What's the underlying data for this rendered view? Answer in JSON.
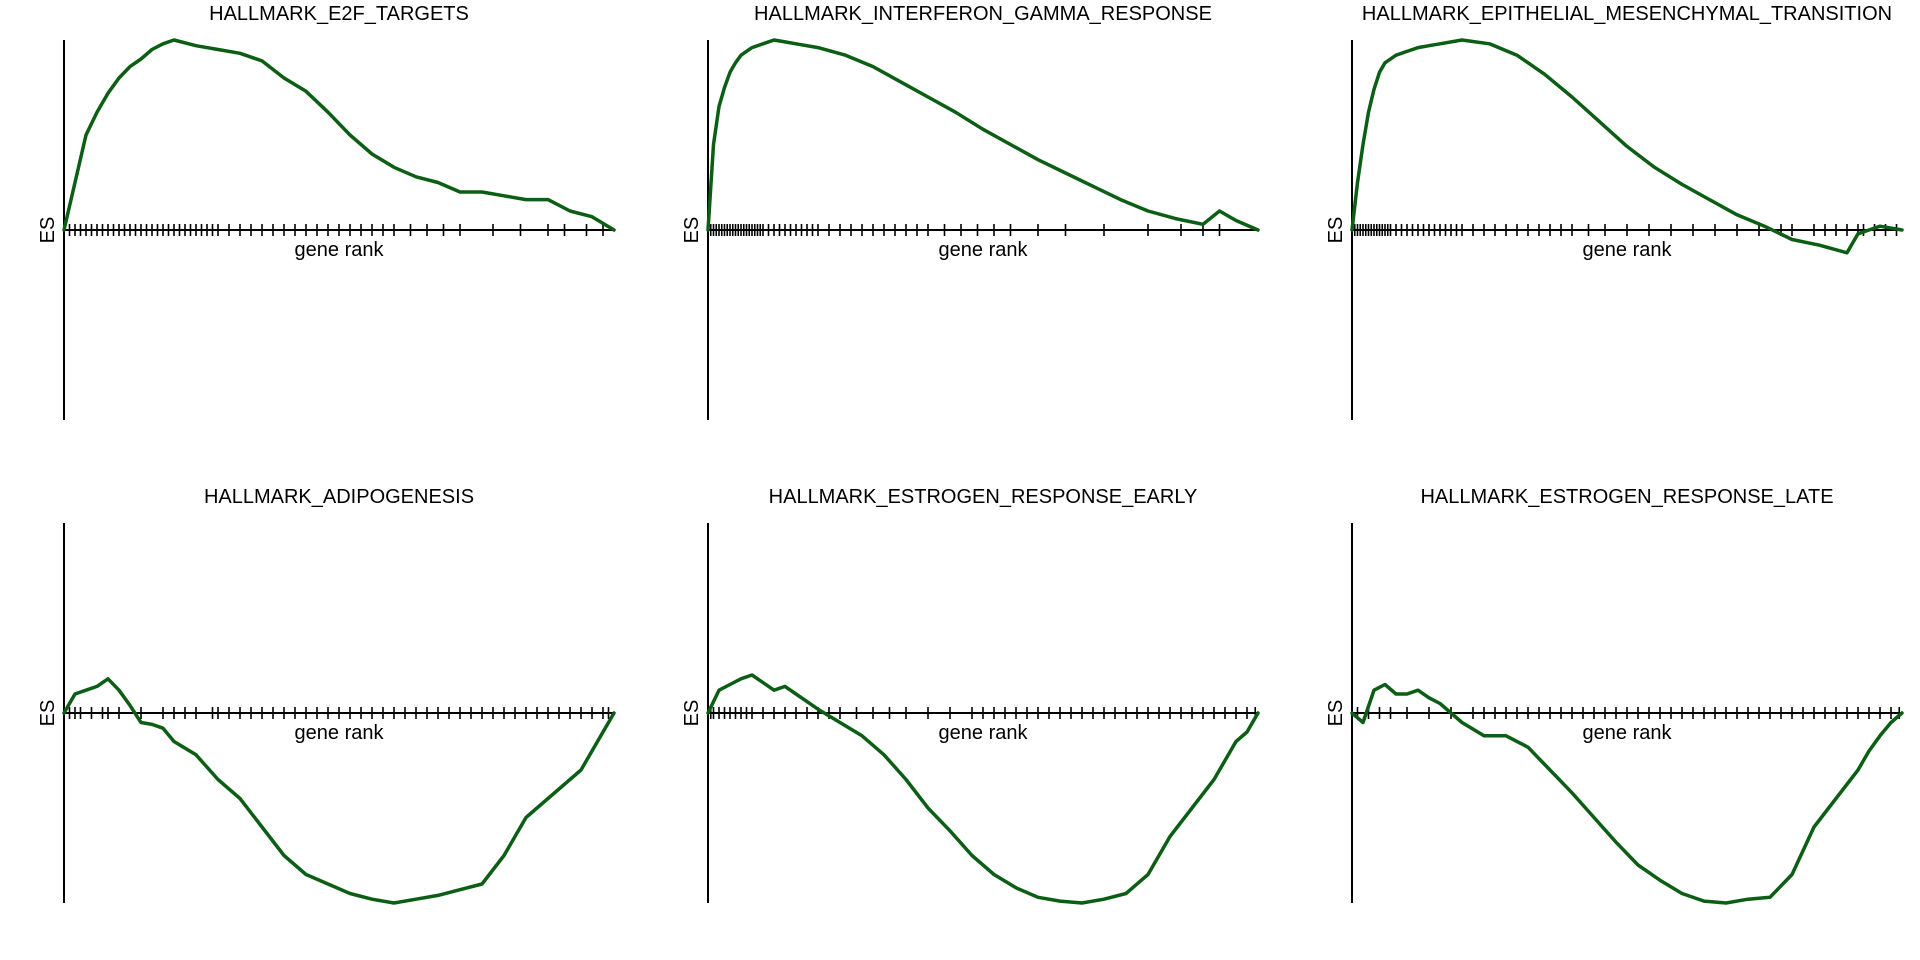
{
  "colors": {
    "curve": "#0b5e14",
    "axis": "#000000"
  },
  "chart_data": [
    {
      "type": "line",
      "title": "HALLMARK_E2F_TARGETS",
      "xlabel": "gene rank",
      "ylabel": "ES",
      "xlim": [
        0,
        1
      ],
      "ylim": [
        -1,
        1
      ],
      "series": [
        {
          "x": [
            0,
            0.02,
            0.04,
            0.06,
            0.08,
            0.1,
            0.12,
            0.14,
            0.16,
            0.18,
            0.2,
            0.24,
            0.28,
            0.32,
            0.36,
            0.4,
            0.44,
            0.48,
            0.52,
            0.56,
            0.6,
            0.64,
            0.68,
            0.72,
            0.76,
            0.8,
            0.84,
            0.88,
            0.92,
            0.96,
            1.0
          ],
          "y": [
            0,
            0.25,
            0.5,
            0.62,
            0.72,
            0.8,
            0.86,
            0.9,
            0.95,
            0.98,
            1.0,
            0.97,
            0.95,
            0.93,
            0.89,
            0.8,
            0.73,
            0.62,
            0.5,
            0.4,
            0.33,
            0.28,
            0.25,
            0.2,
            0.2,
            0.18,
            0.16,
            0.16,
            0.1,
            0.07,
            0.0
          ]
        }
      ],
      "hits": [
        0.01,
        0.02,
        0.03,
        0.04,
        0.05,
        0.06,
        0.07,
        0.08,
        0.09,
        0.1,
        0.11,
        0.12,
        0.13,
        0.14,
        0.15,
        0.16,
        0.17,
        0.18,
        0.19,
        0.2,
        0.21,
        0.22,
        0.23,
        0.24,
        0.25,
        0.26,
        0.27,
        0.28,
        0.3,
        0.32,
        0.34,
        0.36,
        0.38,
        0.4,
        0.42,
        0.44,
        0.46,
        0.48,
        0.5,
        0.52,
        0.54,
        0.56,
        0.58,
        0.6,
        0.63,
        0.66,
        0.69,
        0.72,
        0.78,
        0.83,
        0.88,
        0.91,
        0.95,
        0.98
      ]
    },
    {
      "type": "line",
      "title": "HALLMARK_INTERFERON_GAMMA_RESPONSE",
      "xlabel": "gene rank",
      "ylabel": "ES",
      "xlim": [
        0,
        1
      ],
      "ylim": [
        -1,
        1
      ],
      "series": [
        {
          "x": [
            0,
            0.01,
            0.02,
            0.03,
            0.04,
            0.05,
            0.06,
            0.08,
            0.1,
            0.12,
            0.14,
            0.16,
            0.2,
            0.25,
            0.3,
            0.35,
            0.4,
            0.45,
            0.5,
            0.55,
            0.6,
            0.65,
            0.7,
            0.75,
            0.8,
            0.85,
            0.9,
            0.93,
            0.96,
            1.0
          ],
          "y": [
            0,
            0.45,
            0.65,
            0.75,
            0.83,
            0.88,
            0.92,
            0.96,
            0.98,
            1.0,
            0.99,
            0.98,
            0.96,
            0.92,
            0.86,
            0.78,
            0.7,
            0.62,
            0.53,
            0.45,
            0.37,
            0.3,
            0.23,
            0.16,
            0.1,
            0.06,
            0.03,
            0.1,
            0.05,
            0.0
          ]
        }
      ],
      "hits": [
        0.005,
        0.01,
        0.015,
        0.02,
        0.025,
        0.03,
        0.035,
        0.04,
        0.045,
        0.05,
        0.055,
        0.06,
        0.065,
        0.07,
        0.075,
        0.08,
        0.085,
        0.09,
        0.095,
        0.1,
        0.11,
        0.12,
        0.13,
        0.14,
        0.15,
        0.16,
        0.17,
        0.18,
        0.19,
        0.2,
        0.22,
        0.24,
        0.26,
        0.28,
        0.3,
        0.32,
        0.34,
        0.36,
        0.38,
        0.4,
        0.43,
        0.46,
        0.49,
        0.52,
        0.55,
        0.6,
        0.65,
        0.72,
        0.8,
        0.86,
        0.9,
        0.93
      ]
    },
    {
      "type": "line",
      "title": "HALLMARK_EPITHELIAL_MESENCHYMAL_TRANSITION",
      "xlabel": "gene rank",
      "ylabel": "ES",
      "xlim": [
        0,
        1
      ],
      "ylim": [
        -1,
        1
      ],
      "series": [
        {
          "x": [
            0,
            0.01,
            0.02,
            0.03,
            0.04,
            0.05,
            0.06,
            0.08,
            0.1,
            0.12,
            0.14,
            0.16,
            0.2,
            0.25,
            0.3,
            0.35,
            0.4,
            0.45,
            0.5,
            0.55,
            0.6,
            0.65,
            0.7,
            0.75,
            0.8,
            0.85,
            0.9,
            0.92,
            0.94,
            0.96,
            1.0
          ],
          "y": [
            0,
            0.25,
            0.45,
            0.62,
            0.74,
            0.83,
            0.88,
            0.92,
            0.94,
            0.96,
            0.97,
            0.98,
            1.0,
            0.98,
            0.92,
            0.82,
            0.7,
            0.57,
            0.44,
            0.33,
            0.24,
            0.16,
            0.08,
            0.02,
            -0.05,
            -0.08,
            -0.12,
            -0.02,
            0.0,
            0.02,
            0.0
          ]
        }
      ],
      "hits": [
        0.005,
        0.01,
        0.015,
        0.02,
        0.025,
        0.03,
        0.035,
        0.04,
        0.045,
        0.05,
        0.055,
        0.06,
        0.065,
        0.07,
        0.08,
        0.09,
        0.1,
        0.11,
        0.12,
        0.13,
        0.14,
        0.15,
        0.16,
        0.17,
        0.18,
        0.19,
        0.2,
        0.22,
        0.24,
        0.26,
        0.28,
        0.3,
        0.32,
        0.34,
        0.36,
        0.38,
        0.4,
        0.43,
        0.46,
        0.5,
        0.54,
        0.58,
        0.62,
        0.66,
        0.7,
        0.74,
        0.78,
        0.8,
        0.84,
        0.86,
        0.88,
        0.9,
        0.92,
        0.93,
        0.95,
        0.97,
        0.99
      ]
    },
    {
      "type": "line",
      "title": "HALLMARK_ADIPOGENESIS",
      "xlabel": "gene rank",
      "ylabel": "ES",
      "xlim": [
        0,
        1
      ],
      "ylim": [
        -1,
        1
      ],
      "series": [
        {
          "x": [
            0,
            0.02,
            0.04,
            0.06,
            0.08,
            0.1,
            0.12,
            0.14,
            0.16,
            0.18,
            0.2,
            0.24,
            0.28,
            0.32,
            0.36,
            0.4,
            0.44,
            0.48,
            0.52,
            0.56,
            0.6,
            0.64,
            0.68,
            0.72,
            0.76,
            0.8,
            0.84,
            0.88,
            0.92,
            0.94,
            0.96,
            0.98,
            1.0
          ],
          "y": [
            0,
            0.1,
            0.12,
            0.14,
            0.18,
            0.12,
            0.04,
            -0.05,
            -0.06,
            -0.08,
            -0.15,
            -0.22,
            -0.35,
            -0.45,
            -0.6,
            -0.75,
            -0.85,
            -0.9,
            -0.95,
            -0.98,
            -1.0,
            -0.98,
            -0.96,
            -0.93,
            -0.9,
            -0.75,
            -0.55,
            -0.45,
            -0.35,
            -0.3,
            -0.2,
            -0.1,
            0.0
          ]
        }
      ],
      "hits": [
        0.01,
        0.02,
        0.03,
        0.05,
        0.07,
        0.08,
        0.1,
        0.14,
        0.18,
        0.2,
        0.22,
        0.24,
        0.27,
        0.28,
        0.3,
        0.32,
        0.34,
        0.36,
        0.38,
        0.4,
        0.42,
        0.44,
        0.46,
        0.48,
        0.5,
        0.52,
        0.54,
        0.56,
        0.58,
        0.6,
        0.62,
        0.64,
        0.66,
        0.68,
        0.7,
        0.72,
        0.74,
        0.76,
        0.78,
        0.8,
        0.82,
        0.84,
        0.86,
        0.88,
        0.9,
        0.92,
        0.94,
        0.96,
        0.98,
        0.99
      ]
    },
    {
      "type": "line",
      "title": "HALLMARK_ESTROGEN_RESPONSE_EARLY",
      "xlabel": "gene rank",
      "ylabel": "ES",
      "xlim": [
        0,
        1
      ],
      "ylim": [
        -1,
        1
      ],
      "series": [
        {
          "x": [
            0,
            0.02,
            0.04,
            0.06,
            0.08,
            0.1,
            0.12,
            0.14,
            0.16,
            0.18,
            0.2,
            0.24,
            0.28,
            0.32,
            0.36,
            0.4,
            0.44,
            0.48,
            0.52,
            0.56,
            0.6,
            0.64,
            0.68,
            0.72,
            0.76,
            0.8,
            0.84,
            0.88,
            0.92,
            0.94,
            0.96,
            0.98,
            1.0
          ],
          "y": [
            0,
            0.12,
            0.15,
            0.18,
            0.2,
            0.16,
            0.12,
            0.14,
            0.1,
            0.06,
            0.02,
            -0.05,
            -0.12,
            -0.22,
            -0.35,
            -0.5,
            -0.62,
            -0.75,
            -0.85,
            -0.92,
            -0.97,
            -0.99,
            -1.0,
            -0.98,
            -0.95,
            -0.85,
            -0.65,
            -0.5,
            -0.35,
            -0.25,
            -0.15,
            -0.1,
            0.0
          ]
        }
      ],
      "hits": [
        0.005,
        0.01,
        0.02,
        0.03,
        0.04,
        0.05,
        0.06,
        0.07,
        0.08,
        0.1,
        0.12,
        0.14,
        0.16,
        0.18,
        0.2,
        0.22,
        0.24,
        0.27,
        0.3,
        0.33,
        0.36,
        0.4,
        0.44,
        0.48,
        0.5,
        0.52,
        0.54,
        0.56,
        0.58,
        0.6,
        0.62,
        0.64,
        0.66,
        0.68,
        0.7,
        0.72,
        0.74,
        0.76,
        0.78,
        0.8,
        0.82,
        0.84,
        0.86,
        0.88,
        0.9,
        0.92,
        0.94,
        0.96,
        0.98,
        0.995
      ]
    },
    {
      "type": "line",
      "title": "HALLMARK_ESTROGEN_RESPONSE_LATE",
      "xlabel": "gene rank",
      "ylabel": "ES",
      "xlim": [
        0,
        1
      ],
      "ylim": [
        -1,
        1
      ],
      "series": [
        {
          "x": [
            0,
            0.02,
            0.04,
            0.06,
            0.08,
            0.1,
            0.12,
            0.14,
            0.16,
            0.18,
            0.2,
            0.24,
            0.28,
            0.32,
            0.36,
            0.4,
            0.44,
            0.48,
            0.52,
            0.56,
            0.6,
            0.64,
            0.68,
            0.72,
            0.76,
            0.8,
            0.84,
            0.88,
            0.92,
            0.94,
            0.96,
            0.98,
            1.0
          ],
          "y": [
            0,
            -0.05,
            0.12,
            0.15,
            0.1,
            0.1,
            0.12,
            0.08,
            0.05,
            0.0,
            -0.05,
            -0.12,
            -0.12,
            -0.18,
            -0.3,
            -0.42,
            -0.55,
            -0.68,
            -0.8,
            -0.88,
            -0.95,
            -0.99,
            -1.0,
            -0.98,
            -0.97,
            -0.85,
            -0.6,
            -0.45,
            -0.3,
            -0.2,
            -0.12,
            -0.05,
            0.0
          ]
        }
      ],
      "hits": [
        0.01,
        0.03,
        0.05,
        0.07,
        0.1,
        0.14,
        0.18,
        0.22,
        0.24,
        0.26,
        0.28,
        0.3,
        0.32,
        0.34,
        0.36,
        0.38,
        0.4,
        0.42,
        0.44,
        0.46,
        0.48,
        0.5,
        0.52,
        0.54,
        0.56,
        0.58,
        0.6,
        0.62,
        0.64,
        0.66,
        0.68,
        0.7,
        0.72,
        0.74,
        0.76,
        0.78,
        0.8,
        0.82,
        0.84,
        0.86,
        0.88,
        0.9,
        0.92,
        0.94,
        0.96,
        0.98,
        0.995
      ]
    }
  ]
}
